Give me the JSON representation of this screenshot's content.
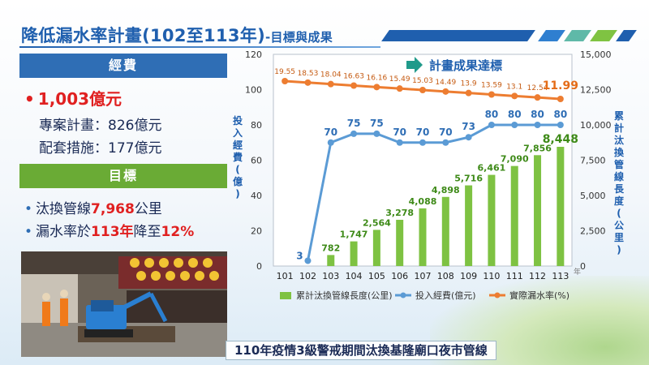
{
  "title": "降低漏水率計畫(102至113年)",
  "subtitle": "-目標與成果",
  "budget": {
    "header": "經費",
    "total": "1,003億元",
    "lines": [
      "專案計畫：826億元",
      "配套措施：177億元"
    ]
  },
  "goals": {
    "header": "目標",
    "items": [
      {
        "pre": "汰換管線",
        "hl": "7,968",
        "post": "公里"
      },
      {
        "pre": "漏水率於",
        "hl": "113年",
        "mid": "降至",
        "hl2": "12%"
      }
    ]
  },
  "photo_caption": "110年疫情3級警戒期間汰換基隆廟口夜市管線",
  "colors": {
    "bar": "#7ec242",
    "investment": "#5b9bd5",
    "leak": "#ed7d31",
    "title": "#1f5fae"
  },
  "chart_data": {
    "type": "bar+line",
    "categories": [
      "101",
      "102",
      "103",
      "104",
      "105",
      "106",
      "107",
      "108",
      "109",
      "110",
      "111",
      "112",
      "113"
    ],
    "x_unit": "年",
    "annotation": "計畫成果達標",
    "left_axis": {
      "label": "投入經費(億)",
      "range": [
        0,
        120
      ],
      "ticks": [
        0,
        20,
        40,
        60,
        80,
        100,
        120
      ]
    },
    "right_axis": {
      "label": "累計汰換管線長度(公里)",
      "range": [
        0,
        15000
      ],
      "ticks": [
        "0",
        "2,500",
        "5,000",
        "7,500",
        "10,000",
        "12,500",
        "15,000"
      ]
    },
    "series": [
      {
        "name": "累計汰換管線長度(公里)",
        "kind": "bar",
        "axis": "right",
        "x": [
          "103",
          "104",
          "105",
          "106",
          "107",
          "108",
          "109",
          "110",
          "111",
          "112",
          "113"
        ],
        "values": [
          782,
          1747,
          2564,
          3278,
          4088,
          4898,
          5716,
          6461,
          7090,
          7856,
          8448
        ],
        "labels": [
          "782",
          "1,747",
          "2,564",
          "3,278",
          "4,088",
          "4,898",
          "5,716",
          "6,461",
          "7,090",
          "7,856",
          "8,448"
        ]
      },
      {
        "name": "投入經費(億元)",
        "kind": "line",
        "axis": "left",
        "x": [
          "102",
          "103",
          "104",
          "105",
          "106",
          "107",
          "108",
          "109",
          "110",
          "111",
          "112",
          "113"
        ],
        "values": [
          3,
          70,
          75,
          75,
          70,
          70,
          70,
          73,
          80,
          80,
          80,
          80
        ]
      },
      {
        "name": "實際漏水率(%)",
        "kind": "line",
        "axis": "left",
        "x": [
          "101",
          "102",
          "103",
          "104",
          "105",
          "106",
          "107",
          "108",
          "109",
          "110",
          "111",
          "112",
          "113"
        ],
        "values": [
          19.55,
          18.53,
          18.04,
          16.63,
          16.16,
          15.49,
          15.03,
          14.49,
          13.9,
          13.59,
          13.1,
          12.54,
          11.99
        ],
        "display": "label-values-on-line-near-top"
      }
    ],
    "legend": "bottom"
  }
}
